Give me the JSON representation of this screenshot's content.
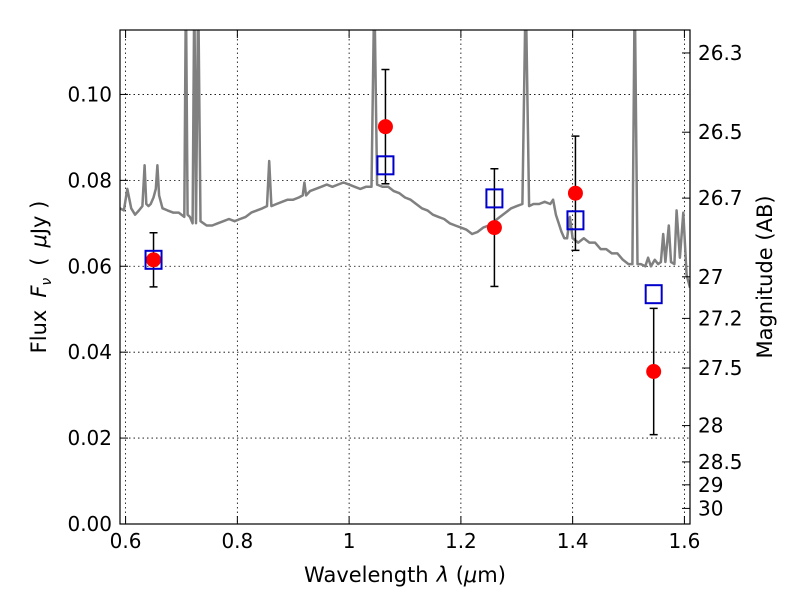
{
  "chart_data": {
    "type": "scatter",
    "xlabel_text": "Wavelength",
    "xlabel_symbol": "λ",
    "xlabel_unit_open": " (",
    "xlabel_unit_mu": "μ",
    "xlabel_unit_close": "m)",
    "ylabel_text": "Flux",
    "ylabel_symbol": "F",
    "ylabel_subscript": "ν",
    "ylabel_unit_open": "(",
    "ylabel_unit_mu": "μ",
    "ylabel_unit_close": "Jy )",
    "y2label": "Magnitude (AB)",
    "xlim": [
      0.59,
      1.61
    ],
    "ylim": [
      0.0,
      0.115
    ],
    "grid": true,
    "x_ticks": [
      {
        "value": 0.6,
        "label": "0.6"
      },
      {
        "value": 0.8,
        "label": "0.8"
      },
      {
        "value": 1.0,
        "label": "1"
      },
      {
        "value": 1.2,
        "label": "1.2"
      },
      {
        "value": 1.4,
        "label": "1.4"
      },
      {
        "value": 1.6,
        "label": "1.6"
      }
    ],
    "y_ticks": [
      {
        "value": 0.0,
        "label": "0.00"
      },
      {
        "value": 0.02,
        "label": "0.02"
      },
      {
        "value": 0.04,
        "label": "0.04"
      },
      {
        "value": 0.06,
        "label": "0.06"
      },
      {
        "value": 0.08,
        "label": "0.08"
      },
      {
        "value": 0.1,
        "label": "0.10"
      }
    ],
    "y2_ticks": [
      {
        "mag": 26.3,
        "label": "26.3"
      },
      {
        "mag": 26.5,
        "label": "26.5"
      },
      {
        "mag": 26.7,
        "label": "26.7"
      },
      {
        "mag": 27.0,
        "label": "27"
      },
      {
        "mag": 27.2,
        "label": "27.2"
      },
      {
        "mag": 27.5,
        "label": "27.5"
      },
      {
        "mag": 28.0,
        "label": "28"
      },
      {
        "mag": 28.5,
        "label": "28.5"
      },
      {
        "mag": 29.0,
        "label": "29"
      },
      {
        "mag": 30.0,
        "label": "30"
      }
    ],
    "colors": {
      "model_spectrum": "#808080",
      "observed": "#ff0000",
      "model_photometry": "#0000cc",
      "errorbar": "#000000"
    },
    "series": [
      {
        "kind": "line",
        "points": [
          [
            0.59,
            0.0735
          ],
          [
            0.597,
            0.073
          ],
          [
            0.603,
            0.078
          ],
          [
            0.61,
            0.0735
          ],
          [
            0.617,
            0.072
          ],
          [
            0.624,
            0.073
          ],
          [
            0.63,
            0.074
          ],
          [
            0.634,
            0.0835
          ],
          [
            0.637,
            0.0745
          ],
          [
            0.641,
            0.074
          ],
          [
            0.645,
            0.0745
          ],
          [
            0.65,
            0.076
          ],
          [
            0.654,
            0.078
          ],
          [
            0.657,
            0.0835
          ],
          [
            0.66,
            0.0765
          ],
          [
            0.666,
            0.0735
          ],
          [
            0.675,
            0.073
          ],
          [
            0.685,
            0.0725
          ],
          [
            0.695,
            0.0725
          ],
          [
            0.705,
            0.0715
          ],
          [
            0.708,
            0.125
          ],
          [
            0.711,
            0.072
          ],
          [
            0.715,
            0.0715
          ],
          [
            0.72,
            0.07
          ],
          [
            0.723,
            0.125
          ],
          [
            0.726,
            0.07
          ],
          [
            0.73,
            0.125
          ],
          [
            0.734,
            0.0705
          ],
          [
            0.745,
            0.0695
          ],
          [
            0.755,
            0.0695
          ],
          [
            0.765,
            0.07
          ],
          [
            0.775,
            0.0705
          ],
          [
            0.785,
            0.071
          ],
          [
            0.795,
            0.0705
          ],
          [
            0.805,
            0.071
          ],
          [
            0.815,
            0.0715
          ],
          [
            0.825,
            0.0725
          ],
          [
            0.835,
            0.073
          ],
          [
            0.845,
            0.0735
          ],
          [
            0.853,
            0.074
          ],
          [
            0.857,
            0.0845
          ],
          [
            0.861,
            0.074
          ],
          [
            0.87,
            0.0745
          ],
          [
            0.88,
            0.075
          ],
          [
            0.89,
            0.0755
          ],
          [
            0.9,
            0.0755
          ],
          [
            0.91,
            0.076
          ],
          [
            0.917,
            0.0765
          ],
          [
            0.92,
            0.0795
          ],
          [
            0.923,
            0.0765
          ],
          [
            0.93,
            0.0775
          ],
          [
            0.94,
            0.078
          ],
          [
            0.95,
            0.0785
          ],
          [
            0.96,
            0.079
          ],
          [
            0.97,
            0.0785
          ],
          [
            0.98,
            0.079
          ],
          [
            0.99,
            0.0795
          ],
          [
            1.0,
            0.079
          ],
          [
            1.01,
            0.0785
          ],
          [
            1.02,
            0.078
          ],
          [
            1.03,
            0.0785
          ],
          [
            1.04,
            0.0785
          ],
          [
            1.045,
            0.125
          ],
          [
            1.05,
            0.079
          ],
          [
            1.06,
            0.0785
          ],
          [
            1.07,
            0.0785
          ],
          [
            1.08,
            0.0775
          ],
          [
            1.09,
            0.077
          ],
          [
            1.1,
            0.076
          ],
          [
            1.11,
            0.0755
          ],
          [
            1.12,
            0.0745
          ],
          [
            1.13,
            0.0735
          ],
          [
            1.14,
            0.073
          ],
          [
            1.15,
            0.072
          ],
          [
            1.16,
            0.0715
          ],
          [
            1.17,
            0.071
          ],
          [
            1.18,
            0.07
          ],
          [
            1.19,
            0.0695
          ],
          [
            1.2,
            0.069
          ],
          [
            1.21,
            0.0685
          ],
          [
            1.22,
            0.0675
          ],
          [
            1.23,
            0.068
          ],
          [
            1.24,
            0.069
          ],
          [
            1.25,
            0.0695
          ],
          [
            1.26,
            0.0705
          ],
          [
            1.27,
            0.0715
          ],
          [
            1.28,
            0.0725
          ],
          [
            1.29,
            0.0735
          ],
          [
            1.3,
            0.074
          ],
          [
            1.31,
            0.0745
          ],
          [
            1.316,
            0.125
          ],
          [
            1.322,
            0.074
          ],
          [
            1.33,
            0.0745
          ],
          [
            1.34,
            0.0745
          ],
          [
            1.35,
            0.075
          ],
          [
            1.36,
            0.0745
          ],
          [
            1.365,
            0.0755
          ],
          [
            1.37,
            0.072
          ],
          [
            1.375,
            0.07
          ],
          [
            1.38,
            0.068
          ],
          [
            1.385,
            0.0665
          ],
          [
            1.39,
            0.0665
          ],
          [
            1.395,
            0.0715
          ],
          [
            1.4,
            0.0665
          ],
          [
            1.41,
            0.0655
          ],
          [
            1.42,
            0.0665
          ],
          [
            1.43,
            0.0655
          ],
          [
            1.44,
            0.0655
          ],
          [
            1.45,
            0.064
          ],
          [
            1.46,
            0.064
          ],
          [
            1.47,
            0.063
          ],
          [
            1.48,
            0.063
          ],
          [
            1.49,
            0.0615
          ],
          [
            1.5,
            0.0605
          ],
          [
            1.507,
            0.0605
          ],
          [
            1.511,
            0.125
          ],
          [
            1.516,
            0.0605
          ],
          [
            1.522,
            0.0605
          ],
          [
            1.53,
            0.06
          ],
          [
            1.535,
            0.062
          ],
          [
            1.54,
            0.06
          ],
          [
            1.547,
            0.0615
          ],
          [
            1.553,
            0.0605
          ],
          [
            1.558,
            0.061
          ],
          [
            1.562,
            0.0675
          ],
          [
            1.566,
            0.061
          ],
          [
            1.572,
            0.0695
          ],
          [
            1.576,
            0.061
          ],
          [
            1.582,
            0.0605
          ],
          [
            1.586,
            0.073
          ],
          [
            1.592,
            0.062
          ],
          [
            1.598,
            0.0725
          ],
          [
            1.604,
            0.058
          ],
          [
            1.61,
            0.055
          ]
        ]
      },
      {
        "kind": "scatter",
        "marker": "circle",
        "points": [
          {
            "x": 0.65,
            "y": 0.0615,
            "yerr": 0.0063
          },
          {
            "x": 1.065,
            "y": 0.0925,
            "yerr": 0.0133
          },
          {
            "x": 1.26,
            "y": 0.069,
            "yerr": 0.0137
          },
          {
            "x": 1.405,
            "y": 0.077,
            "yerr": 0.0133
          },
          {
            "x": 1.545,
            "y": 0.0355,
            "yerr": 0.0147
          }
        ]
      },
      {
        "kind": "scatter",
        "marker": "square",
        "points": [
          {
            "x": 0.65,
            "y": 0.0615
          },
          {
            "x": 1.065,
            "y": 0.0835
          },
          {
            "x": 1.26,
            "y": 0.0758
          },
          {
            "x": 1.405,
            "y": 0.0707
          },
          {
            "x": 1.545,
            "y": 0.0535
          }
        ]
      }
    ]
  }
}
